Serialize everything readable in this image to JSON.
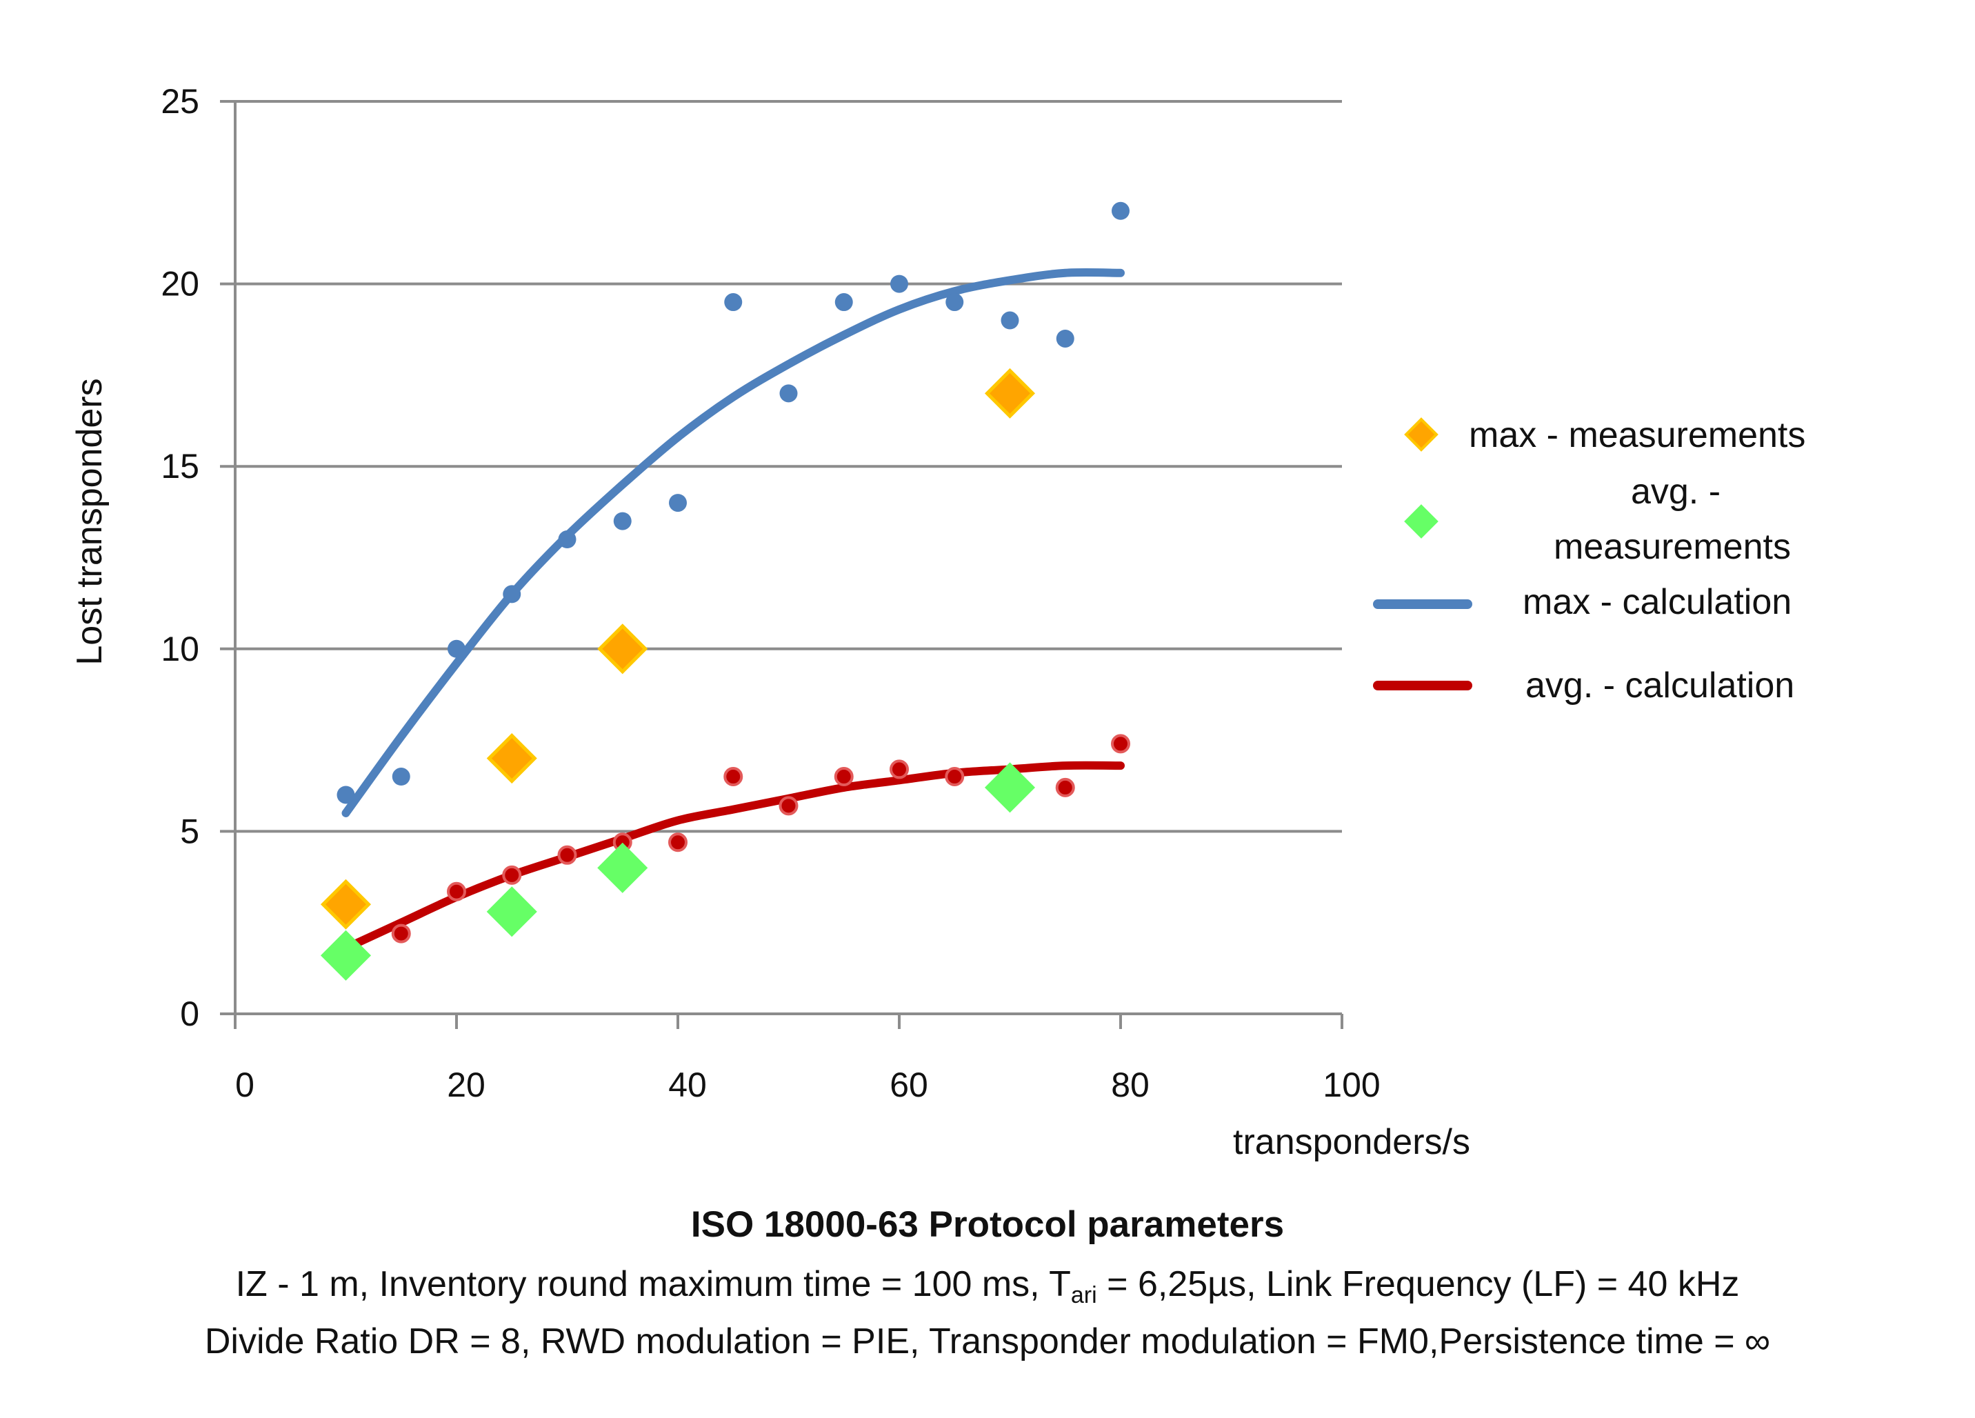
{
  "chart_data": {
    "type": "scatter",
    "title": "",
    "xlabel": "transponders/s",
    "ylabel": "Lost transponders",
    "xlim": [
      0,
      100
    ],
    "ylim": [
      0,
      25
    ],
    "xticks": [
      0,
      20,
      40,
      60,
      80,
      100
    ],
    "yticks": [
      0,
      5,
      10,
      15,
      20,
      25
    ],
    "grid": "horizontal",
    "legend_position": "right",
    "series": [
      {
        "name": "max - measurements",
        "kind": "diamond-markers",
        "color": "#FFA500",
        "border_color": "#FFC800",
        "x": [
          10,
          25,
          35,
          70
        ],
        "y": [
          3,
          7,
          10,
          17
        ]
      },
      {
        "name": "avg. - measurements",
        "kind": "diamond-markers",
        "color": "#66FF66",
        "border_color": "#66FF66",
        "x": [
          10,
          25,
          35,
          70
        ],
        "y": [
          1.6,
          2.8,
          4.0,
          6.2
        ]
      },
      {
        "name": "max - calculation",
        "kind": "dots-with-trendline",
        "color": "#4F81BD",
        "x": [
          10,
          15,
          20,
          25,
          30,
          35,
          40,
          45,
          50,
          55,
          60,
          65,
          70,
          75,
          80
        ],
        "y": [
          6.0,
          6.5,
          10.0,
          11.5,
          13.0,
          13.5,
          14.0,
          19.5,
          17.0,
          19.5,
          20.0,
          19.5,
          19.0,
          18.5,
          22.0
        ],
        "trend_x": [
          10,
          15,
          20,
          25,
          30,
          35,
          40,
          45,
          50,
          55,
          60,
          65,
          70,
          75,
          80
        ],
        "trend_y": [
          5.5,
          7.6,
          9.6,
          11.5,
          13.1,
          14.5,
          15.8,
          16.9,
          17.8,
          18.6,
          19.3,
          19.8,
          20.1,
          20.3,
          20.3
        ]
      },
      {
        "name": "avg. - calculation",
        "kind": "dots-with-trendline",
        "color": "#C00000",
        "x": [
          10,
          15,
          20,
          25,
          30,
          35,
          40,
          45,
          50,
          55,
          60,
          65,
          70,
          75,
          80
        ],
        "y": [
          1.9,
          2.2,
          3.35,
          3.8,
          4.35,
          4.7,
          4.7,
          6.5,
          5.7,
          6.5,
          6.7,
          6.5,
          6.3,
          6.2,
          7.4
        ],
        "trend_x": [
          10,
          15,
          20,
          25,
          30,
          35,
          40,
          45,
          50,
          55,
          60,
          65,
          70,
          75,
          80
        ],
        "trend_y": [
          1.8,
          2.5,
          3.2,
          3.8,
          4.3,
          4.8,
          5.3,
          5.6,
          5.9,
          6.2,
          6.4,
          6.6,
          6.7,
          6.8,
          6.8
        ]
      }
    ],
    "legend": [
      {
        "label": "max - measurements",
        "symbol": "diamond",
        "color": "#FFA500"
      },
      {
        "label_line1": "avg.  -",
        "label_line2": "measurements",
        "symbol": "diamond",
        "color": "#66FF66"
      },
      {
        "label": "max - calculation",
        "symbol": "line",
        "color": "#4F81BD"
      },
      {
        "label": "avg. - calculation",
        "symbol": "line",
        "color": "#C00000"
      }
    ]
  },
  "caption": {
    "title": "ISO 18000-63 Protocol parameters",
    "line1_before": "IZ -  1 m, Inventory round maximum time  =  100 ms, T",
    "line1_sub": "ari",
    "line1_after": " = 6,25µs, Link Frequency (LF) =  40 kHz",
    "line2": "Divide Ratio DR =  8, RWD modulation = PIE, Transponder modulation = FM0,Persistence time =  ∞"
  }
}
